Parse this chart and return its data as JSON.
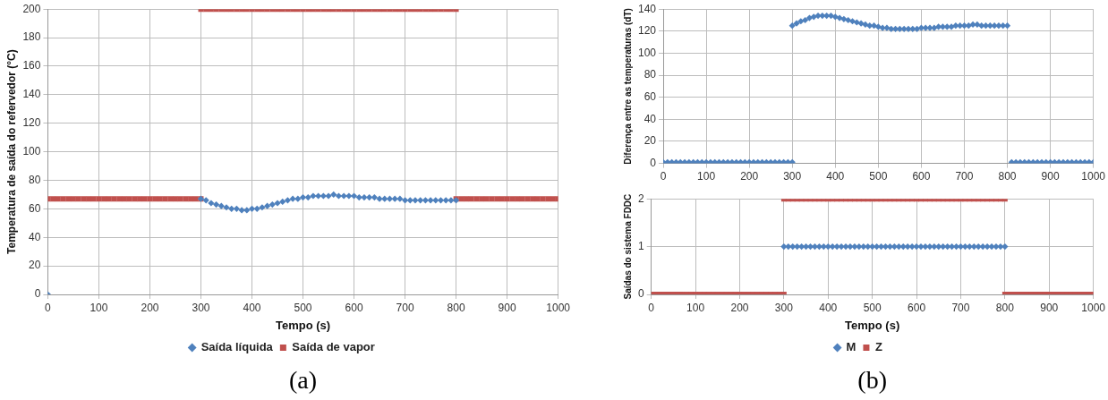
{
  "chart_data": [
    {
      "type": "scatter",
      "xlabel": "Tempo (s)",
      "ylabel": "Temperatura de saída do refervedor (°C)",
      "xlim": [
        0,
        1000
      ],
      "xticks": [
        0,
        100,
        200,
        300,
        400,
        500,
        600,
        700,
        800,
        900,
        1000
      ],
      "ylim": [
        0,
        200
      ],
      "yticks": [
        0,
        20,
        40,
        60,
        80,
        100,
        120,
        140,
        160,
        180,
        200
      ],
      "grid": true,
      "legend": "bottom",
      "annotations": [
        "(a)"
      ],
      "series": [
        {
          "name": "Saída líquida",
          "color": "#4f81bd",
          "marker": "diamond",
          "x": [
            0,
            300,
            310,
            320,
            330,
            340,
            350,
            360,
            370,
            380,
            390,
            400,
            410,
            420,
            430,
            440,
            450,
            460,
            470,
            480,
            490,
            500,
            510,
            520,
            530,
            540,
            550,
            560,
            570,
            580,
            590,
            600,
            610,
            620,
            630,
            640,
            650,
            660,
            670,
            680,
            690,
            700,
            710,
            720,
            730,
            740,
            750,
            760,
            770,
            780,
            790,
            800
          ],
          "values": [
            0,
            67,
            66,
            64,
            63,
            62,
            61,
            60,
            60,
            59,
            59,
            60,
            60,
            61,
            62,
            63,
            64,
            65,
            66,
            67,
            67,
            68,
            68,
            69,
            69,
            69,
            69,
            70,
            69,
            69,
            69,
            69,
            68,
            68,
            68,
            68,
            67,
            67,
            67,
            67,
            67,
            66,
            66,
            66,
            66,
            66,
            66,
            66,
            66,
            66,
            66,
            66
          ]
        },
        {
          "name": "Saída de vapor",
          "color": "#c0504d",
          "marker": "square",
          "x": [
            0,
            10,
            20,
            30,
            40,
            50,
            60,
            70,
            80,
            90,
            100,
            110,
            120,
            130,
            140,
            150,
            160,
            170,
            180,
            190,
            200,
            210,
            220,
            230,
            240,
            250,
            260,
            270,
            280,
            290,
            300,
            300,
            310,
            320,
            330,
            340,
            350,
            360,
            370,
            380,
            390,
            400,
            410,
            420,
            430,
            440,
            450,
            460,
            470,
            480,
            490,
            500,
            510,
            520,
            530,
            540,
            550,
            560,
            570,
            580,
            590,
            600,
            610,
            620,
            630,
            640,
            650,
            660,
            670,
            680,
            690,
            700,
            710,
            720,
            730,
            740,
            750,
            760,
            770,
            780,
            790,
            800,
            800,
            810,
            820,
            830,
            840,
            850,
            860,
            870,
            880,
            890,
            900,
            910,
            920,
            930,
            940,
            950,
            960,
            970,
            980,
            990,
            1000
          ],
          "values": [
            67,
            67,
            67,
            67,
            67,
            67,
            67,
            67,
            67,
            67,
            67,
            67,
            67,
            67,
            67,
            67,
            67,
            67,
            67,
            67,
            67,
            67,
            67,
            67,
            67,
            67,
            67,
            67,
            67,
            67,
            67,
            200,
            200,
            200,
            200,
            200,
            200,
            200,
            200,
            200,
            200,
            200,
            200,
            200,
            200,
            200,
            200,
            200,
            200,
            200,
            200,
            200,
            200,
            200,
            200,
            200,
            200,
            200,
            200,
            200,
            200,
            200,
            200,
            200,
            200,
            200,
            200,
            200,
            200,
            200,
            200,
            200,
            200,
            200,
            200,
            200,
            200,
            200,
            200,
            200,
            200,
            200,
            67,
            67,
            67,
            67,
            67,
            67,
            67,
            67,
            67,
            67,
            67,
            67,
            67,
            67,
            67,
            67,
            67,
            67,
            67,
            67,
            67
          ]
        }
      ]
    },
    {
      "type": "scatter",
      "ylabel": "Diferença entre as temperaturas (dT)",
      "xlim": [
        0,
        1000
      ],
      "xticks": [
        0,
        100,
        200,
        300,
        400,
        500,
        600,
        700,
        800,
        900,
        1000
      ],
      "ylim": [
        0,
        140
      ],
      "yticks": [
        0,
        20,
        40,
        60,
        80,
        100,
        120,
        140
      ],
      "grid": true,
      "series": [
        {
          "color": "#4f81bd",
          "marker": "diamond",
          "x": [
            0,
            10,
            20,
            30,
            40,
            50,
            60,
            70,
            80,
            90,
            100,
            110,
            120,
            130,
            140,
            150,
            160,
            170,
            180,
            190,
            200,
            210,
            220,
            230,
            240,
            250,
            260,
            270,
            280,
            290,
            300,
            300,
            310,
            320,
            330,
            340,
            350,
            360,
            370,
            380,
            390,
            400,
            410,
            420,
            430,
            440,
            450,
            460,
            470,
            480,
            490,
            500,
            510,
            520,
            530,
            540,
            550,
            560,
            570,
            580,
            590,
            600,
            610,
            620,
            630,
            640,
            650,
            660,
            670,
            680,
            690,
            700,
            710,
            720,
            730,
            740,
            750,
            760,
            770,
            780,
            790,
            800,
            810,
            820,
            830,
            840,
            850,
            860,
            870,
            880,
            890,
            900,
            910,
            920,
            930,
            940,
            950,
            960,
            970,
            980,
            990,
            1000
          ],
          "values": [
            1,
            1,
            1,
            1,
            1,
            1,
            1,
            1,
            1,
            1,
            1,
            1,
            1,
            1,
            1,
            1,
            1,
            1,
            1,
            1,
            1,
            1,
            1,
            1,
            1,
            1,
            1,
            1,
            1,
            1,
            1,
            125,
            127,
            129,
            130,
            132,
            133,
            134,
            134,
            134,
            134,
            133,
            132,
            131,
            130,
            129,
            128,
            127,
            126,
            125,
            125,
            124,
            123,
            123,
            122,
            122,
            122,
            122,
            122,
            122,
            122,
            123,
            123,
            123,
            123,
            124,
            124,
            124,
            124,
            125,
            125,
            125,
            125,
            126,
            126,
            125,
            125,
            125,
            125,
            125,
            125,
            125,
            1,
            1,
            1,
            1,
            1,
            1,
            1,
            1,
            1,
            1,
            1,
            1,
            1,
            1,
            1,
            1,
            1,
            1,
            1,
            1
          ]
        }
      ]
    },
    {
      "type": "scatter",
      "xlabel": "Tempo (s)",
      "ylabel": "Saídas do sistema FDDC",
      "xlim": [
        0,
        1000
      ],
      "xticks": [
        0,
        100,
        200,
        300,
        400,
        500,
        600,
        700,
        800,
        900,
        1000
      ],
      "ylim": [
        0,
        2
      ],
      "yticks": [
        0,
        1,
        2
      ],
      "grid": true,
      "legend": "bottom",
      "annotations": [
        "(b)"
      ],
      "series": [
        {
          "name": "M",
          "color": "#4f81bd",
          "marker": "diamond",
          "x": [
            300,
            310,
            320,
            330,
            340,
            350,
            360,
            370,
            380,
            390,
            400,
            410,
            420,
            430,
            440,
            450,
            460,
            470,
            480,
            490,
            500,
            510,
            520,
            530,
            540,
            550,
            560,
            570,
            580,
            590,
            600,
            610,
            620,
            630,
            640,
            650,
            660,
            670,
            680,
            690,
            700,
            710,
            720,
            730,
            740,
            750,
            760,
            770,
            780,
            790,
            800
          ],
          "values": [
            1,
            1,
            1,
            1,
            1,
            1,
            1,
            1,
            1,
            1,
            1,
            1,
            1,
            1,
            1,
            1,
            1,
            1,
            1,
            1,
            1,
            1,
            1,
            1,
            1,
            1,
            1,
            1,
            1,
            1,
            1,
            1,
            1,
            1,
            1,
            1,
            1,
            1,
            1,
            1,
            1,
            1,
            1,
            1,
            1,
            1,
            1,
            1,
            1,
            1,
            1
          ]
        },
        {
          "name": "Z",
          "color": "#c0504d",
          "marker": "square",
          "x": [
            0,
            10,
            20,
            30,
            40,
            50,
            60,
            70,
            80,
            90,
            100,
            110,
            120,
            130,
            140,
            150,
            160,
            170,
            180,
            190,
            200,
            210,
            220,
            230,
            240,
            250,
            260,
            270,
            280,
            290,
            300,
            300,
            310,
            320,
            330,
            340,
            350,
            360,
            370,
            380,
            390,
            400,
            410,
            420,
            430,
            440,
            450,
            460,
            470,
            480,
            490,
            500,
            510,
            520,
            530,
            540,
            550,
            560,
            570,
            580,
            590,
            600,
            610,
            620,
            630,
            640,
            650,
            660,
            670,
            680,
            690,
            700,
            710,
            720,
            730,
            740,
            750,
            760,
            770,
            780,
            790,
            800,
            800,
            810,
            820,
            830,
            840,
            850,
            860,
            870,
            880,
            890,
            900,
            910,
            920,
            930,
            940,
            950,
            960,
            970,
            980,
            990,
            1000
          ],
          "values": [
            0,
            0,
            0,
            0,
            0,
            0,
            0,
            0,
            0,
            0,
            0,
            0,
            0,
            0,
            0,
            0,
            0,
            0,
            0,
            0,
            0,
            0,
            0,
            0,
            0,
            0,
            0,
            0,
            0,
            0,
            0,
            2,
            2,
            2,
            2,
            2,
            2,
            2,
            2,
            2,
            2,
            2,
            2,
            2,
            2,
            2,
            2,
            2,
            2,
            2,
            2,
            2,
            2,
            2,
            2,
            2,
            2,
            2,
            2,
            2,
            2,
            2,
            2,
            2,
            2,
            2,
            2,
            2,
            2,
            2,
            2,
            2,
            2,
            2,
            2,
            2,
            2,
            2,
            2,
            2,
            2,
            2,
            0,
            0,
            0,
            0,
            0,
            0,
            0,
            0,
            0,
            0,
            0,
            0,
            0,
            0,
            0,
            0,
            0,
            0,
            0,
            0,
            0
          ]
        }
      ]
    }
  ]
}
